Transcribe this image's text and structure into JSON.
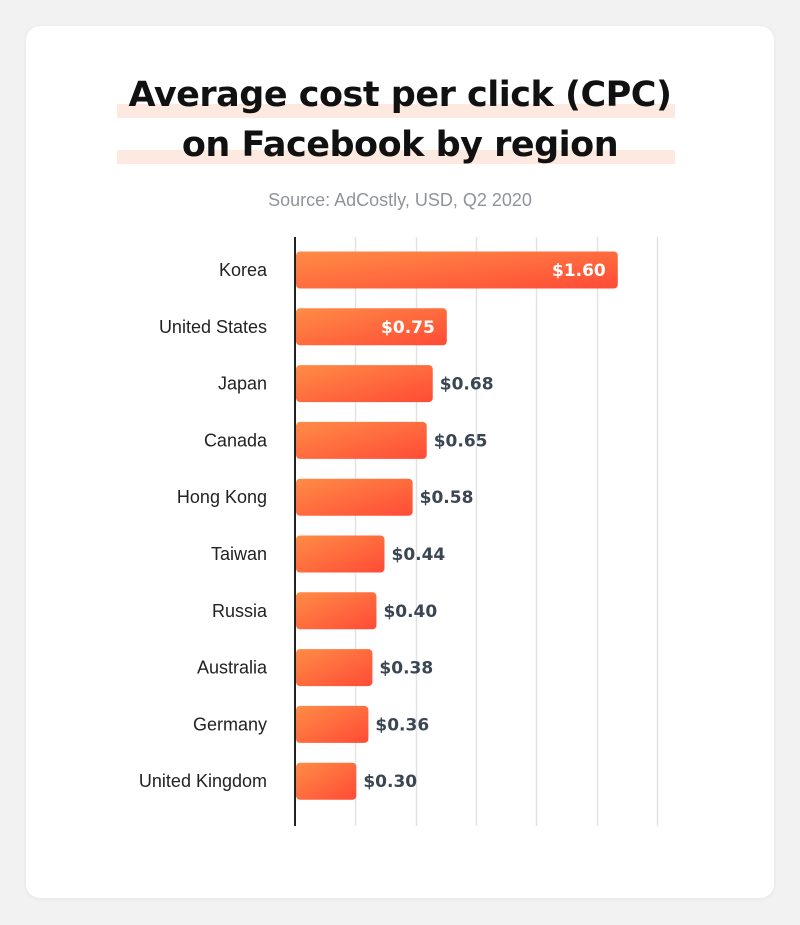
{
  "chart_data": {
    "type": "bar",
    "orientation": "horizontal",
    "title_lines": [
      "Average cost per click (CPC)",
      "on Facebook by region"
    ],
    "subtitle": "Source: AdCostly, USD, Q2 2020",
    "categories": [
      "Korea",
      "United States",
      "Japan",
      "Canada",
      "Hong Kong",
      "Taiwan",
      "Russia",
      "Australia",
      "Germany",
      "United Kingdom"
    ],
    "values": [
      1.6,
      0.75,
      0.68,
      0.65,
      0.58,
      0.44,
      0.4,
      0.38,
      0.36,
      0.3
    ],
    "data_labels": [
      "$1.60",
      "$0.75",
      "$0.68",
      "$0.65",
      "$0.58",
      "$0.44",
      "$0.40",
      "$0.38",
      "$0.36",
      "$0.30"
    ],
    "label_inside": [
      true,
      true,
      false,
      false,
      false,
      false,
      false,
      false,
      false,
      false
    ],
    "xlim": [
      0,
      1.8
    ],
    "grid": true,
    "xlabel": "",
    "ylabel": ""
  },
  "colors": {
    "bar_start": "#ff8c46",
    "bar_end": "#ff4b36",
    "label_dark": "#3b4654",
    "label_light": "#ffffff",
    "category_text": "#222222",
    "grid": "#e3e3e3",
    "axis": "#222222"
  }
}
